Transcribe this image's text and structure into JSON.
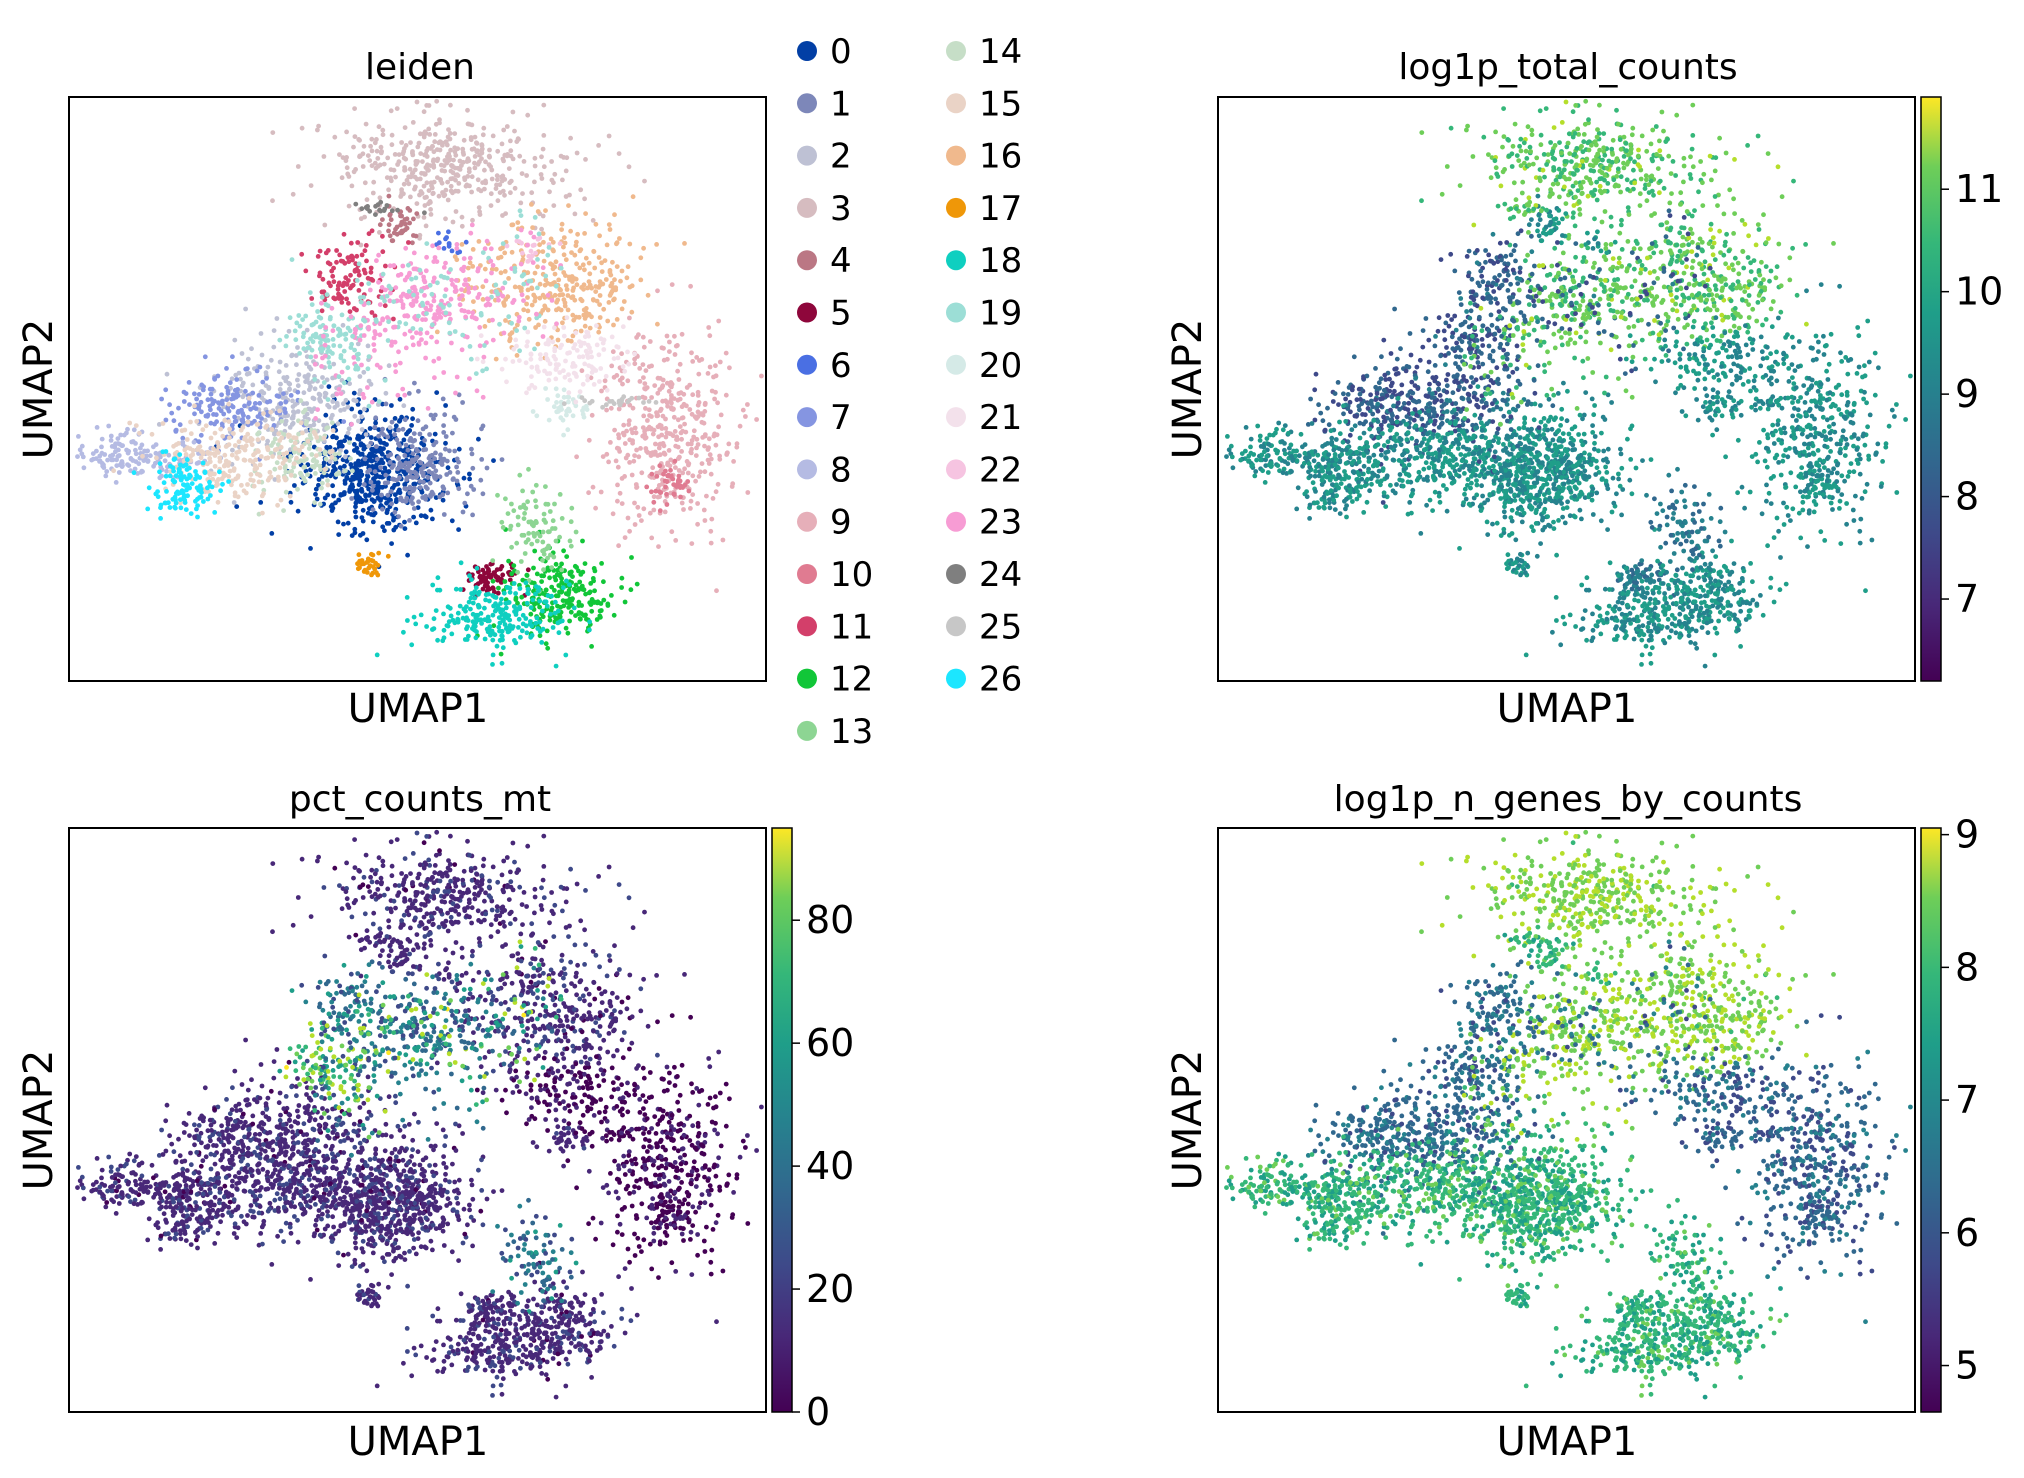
{
  "chart_data": [
    {
      "type": "scatter",
      "title": "leiden",
      "xlabel": "UMAP1",
      "ylabel": "UMAP2",
      "legend": {
        "placement": "right",
        "entries": [
          {
            "label": "0",
            "color": "#023fa5"
          },
          {
            "label": "1",
            "color": "#7d87b9"
          },
          {
            "label": "2",
            "color": "#bec1d4"
          },
          {
            "label": "3",
            "color": "#d6bcc0"
          },
          {
            "label": "4",
            "color": "#bb7784"
          },
          {
            "label": "5",
            "color": "#8e063b"
          },
          {
            "label": "6",
            "color": "#4a6fe3"
          },
          {
            "label": "7",
            "color": "#8595e1"
          },
          {
            "label": "8",
            "color": "#b5bbe3"
          },
          {
            "label": "9",
            "color": "#e6afb9"
          },
          {
            "label": "10",
            "color": "#e07b91"
          },
          {
            "label": "11",
            "color": "#d33f6a"
          },
          {
            "label": "12",
            "color": "#11c638"
          },
          {
            "label": "13",
            "color": "#8dd593"
          },
          {
            "label": "14",
            "color": "#c6dec7"
          },
          {
            "label": "15",
            "color": "#ead3c6"
          },
          {
            "label": "16",
            "color": "#f0b98d"
          },
          {
            "label": "17",
            "color": "#ef9708"
          },
          {
            "label": "18",
            "color": "#0fcfc0"
          },
          {
            "label": "19",
            "color": "#9cded6"
          },
          {
            "label": "20",
            "color": "#d5eae7"
          },
          {
            "label": "21",
            "color": "#f3e1eb"
          },
          {
            "label": "22",
            "color": "#f6c4e1"
          },
          {
            "label": "23",
            "color": "#f79cd4"
          },
          {
            "label": "24",
            "color": "#7f7f7f"
          },
          {
            "label": "25",
            "color": "#c7c7c7"
          },
          {
            "label": "26",
            "color": "#1ce6ff"
          }
        ]
      }
    },
    {
      "type": "scatter",
      "title": "log1p_total_counts",
      "xlabel": "UMAP1",
      "ylabel": "UMAP2",
      "colorbar": {
        "range": [
          6.2,
          11.9
        ],
        "ticks": [
          7,
          8,
          9,
          10,
          11
        ],
        "cmap": "viridis"
      }
    },
    {
      "type": "scatter",
      "title": "pct_counts_mt",
      "xlabel": "UMAP1",
      "ylabel": "UMAP2",
      "colorbar": {
        "range": [
          0,
          95
        ],
        "ticks": [
          0,
          20,
          40,
          60,
          80
        ],
        "cmap": "viridis"
      }
    },
    {
      "type": "scatter",
      "title": "log1p_n_genes_by_counts",
      "xlabel": "UMAP1",
      "ylabel": "UMAP2",
      "colorbar": {
        "range": [
          4.65,
          9.05
        ],
        "ticks": [
          5,
          6,
          7,
          8,
          9
        ],
        "cmap": "viridis"
      }
    }
  ]
}
